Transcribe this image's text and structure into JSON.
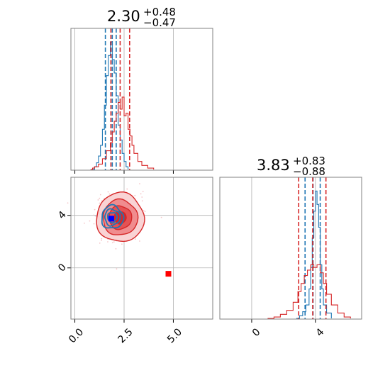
{
  "chart_data": {
    "type": "corner",
    "parameters": [
      {
        "value": "2.30",
        "upper": "+0.48",
        "lower": "−0.47"
      },
      {
        "value": "3.83",
        "upper": "+0.83",
        "lower": "−0.88"
      }
    ],
    "panels": {
      "x_hist": {
        "xlim": [
          -0.2,
          7.0
        ],
        "series": [
          {
            "color": "#1f77b4",
            "type": "step",
            "bins": [
              [
                0.8,
                0.0
              ],
              [
                1.0,
                0.02
              ],
              [
                1.1,
                0.05
              ],
              [
                1.2,
                0.1
              ],
              [
                1.3,
                0.18
              ],
              [
                1.4,
                0.3
              ],
              [
                1.5,
                0.48
              ],
              [
                1.6,
                0.7
              ],
              [
                1.7,
                0.85
              ],
              [
                1.8,
                0.95
              ],
              [
                1.9,
                0.82
              ],
              [
                2.0,
                0.72
              ],
              [
                2.1,
                0.55
              ],
              [
                2.2,
                0.33
              ],
              [
                2.3,
                0.22
              ],
              [
                2.4,
                0.12
              ],
              [
                2.5,
                0.06
              ],
              [
                2.6,
                0.02
              ],
              [
                2.7,
                0.0
              ]
            ],
            "quantiles": [
              1.55,
              1.9,
              2.1
            ]
          },
          {
            "color": "#d62728",
            "type": "step",
            "bins": [
              [
                0.8,
                0.0
              ],
              [
                0.9,
                0.01
              ],
              [
                1.0,
                0.02
              ],
              [
                1.2,
                0.04
              ],
              [
                1.4,
                0.08
              ],
              [
                1.6,
                0.14
              ],
              [
                1.8,
                0.2
              ],
              [
                1.9,
                0.28
              ],
              [
                2.0,
                0.36
              ],
              [
                2.1,
                0.42
              ],
              [
                2.2,
                0.5
              ],
              [
                2.3,
                0.45
              ],
              [
                2.4,
                0.54
              ],
              [
                2.5,
                0.4
              ],
              [
                2.6,
                0.42
              ],
              [
                2.7,
                0.3
              ],
              [
                2.8,
                0.25
              ],
              [
                2.9,
                0.18
              ],
              [
                3.0,
                0.12
              ],
              [
                3.2,
                0.06
              ],
              [
                3.4,
                0.03
              ],
              [
                3.7,
                0.01
              ],
              [
                4.0,
                0.0
              ]
            ],
            "quantiles": [
              1.83,
              2.3,
              2.78
            ]
          }
        ]
      },
      "y_hist": {
        "xlim": [
          -2.0,
          6.9
        ],
        "xticks": [
          "0",
          "4"
        ],
        "series": [
          {
            "color": "#1f77b4",
            "type": "step",
            "bins": [
              [
                2.8,
                0.0
              ],
              [
                3.0,
                0.02
              ],
              [
                3.2,
                0.05
              ],
              [
                3.4,
                0.1
              ],
              [
                3.6,
                0.22
              ],
              [
                3.7,
                0.38
              ],
              [
                3.8,
                0.6
              ],
              [
                3.9,
                0.8
              ],
              [
                4.0,
                0.95
              ],
              [
                4.1,
                0.85
              ],
              [
                4.2,
                0.68
              ],
              [
                4.3,
                0.4
              ],
              [
                4.4,
                0.22
              ],
              [
                4.5,
                0.1
              ],
              [
                4.7,
                0.04
              ],
              [
                5.0,
                0.0
              ]
            ],
            "quantiles": [
              3.35,
              3.85,
              4.3
            ]
          },
          {
            "color": "#d62728",
            "type": "step",
            "bins": [
              [
                1.0,
                0.0
              ],
              [
                1.4,
                0.01
              ],
              [
                1.8,
                0.03
              ],
              [
                2.2,
                0.06
              ],
              [
                2.6,
                0.12
              ],
              [
                2.9,
                0.2
              ],
              [
                3.1,
                0.26
              ],
              [
                3.3,
                0.32
              ],
              [
                3.5,
                0.36
              ],
              [
                3.7,
                0.4
              ],
              [
                3.9,
                0.38
              ],
              [
                4.1,
                0.4
              ],
              [
                4.3,
                0.34
              ],
              [
                4.5,
                0.26
              ],
              [
                4.7,
                0.18
              ],
              [
                5.0,
                0.1
              ],
              [
                5.4,
                0.04
              ],
              [
                5.8,
                0.01
              ],
              [
                6.2,
                0.0
              ]
            ],
            "quantiles": [
              2.95,
              3.83,
              4.66
            ]
          }
        ]
      },
      "joint": {
        "xlim": [
          -0.2,
          7.0
        ],
        "ylim": [
          -3.9,
          6.9
        ],
        "xticks": [
          "0.0",
          "2.5",
          "5.0"
        ],
        "yticks": [
          "0",
          "4"
        ],
        "red_fit": {
          "x": 2.3,
          "y": 3.83,
          "sx": 0.55,
          "sy": 0.85
        },
        "blue_fit": {
          "x": 1.9,
          "y": 3.85,
          "sx": 0.25,
          "sy": 0.4
        },
        "markers": [
          {
            "color": "#0000ff",
            "x": 1.85,
            "y": 3.75
          },
          {
            "color": "#ff0000",
            "x": 4.75,
            "y": -0.45
          }
        ]
      }
    },
    "colors": {
      "blue": "#1f77b4",
      "red": "#d62728",
      "grid": "#b0b0b0"
    },
    "grid": true
  }
}
